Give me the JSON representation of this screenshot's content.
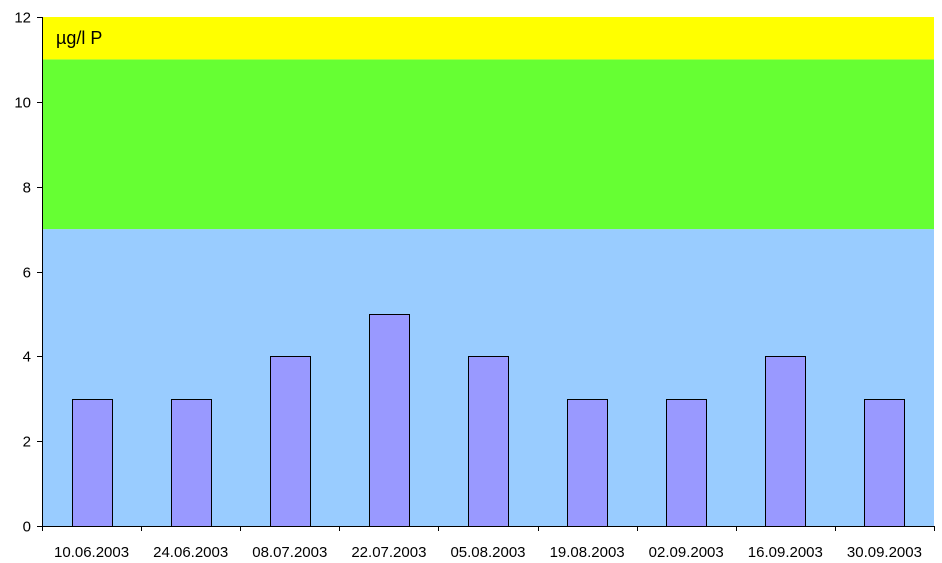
{
  "chart_data": {
    "type": "bar",
    "title": "",
    "xlabel": "",
    "ylabel": "",
    "unit_label": "µg/l P",
    "categories": [
      "10.06.2003",
      "24.06.2003",
      "08.07.2003",
      "22.07.2003",
      "05.08.2003",
      "19.08.2003",
      "02.09.2003",
      "16.09.2003",
      "30.09.2003"
    ],
    "values": [
      3,
      3,
      4,
      5,
      4,
      3,
      3,
      4,
      3
    ],
    "ylim": [
      0,
      12
    ],
    "yticks": [
      "0",
      "2",
      "4",
      "6",
      "8",
      "10",
      "12"
    ],
    "grid": false,
    "legend": "none",
    "bands": [
      {
        "from": 0,
        "to": 7,
        "color": "#99ccff"
      },
      {
        "from": 7,
        "to": 11,
        "color": "#66ff33"
      },
      {
        "from": 11,
        "to": 12,
        "color": "#ffff00"
      }
    ],
    "bar_color": "#9999ff",
    "bar_edge_color": "#000000"
  }
}
